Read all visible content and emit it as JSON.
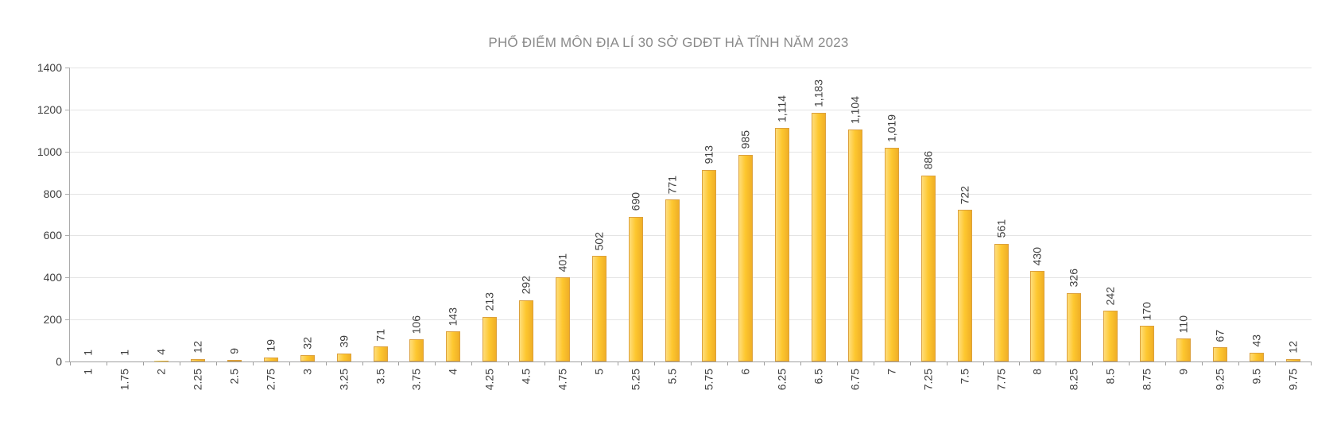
{
  "title": "PHỔ ĐIỂM MÔN ĐỊA LÍ 30 SỞ GDĐT HÀ TĨNH NĂM 2023",
  "colors": {
    "bar_fill": "#FDC72F",
    "bar_fill_light": "#FFDD7A",
    "bar_fill_dark": "#F0AF26",
    "bar_border": "#DCA13D",
    "title_text": "#8A8A8A",
    "axis_text": "#3F3F3F",
    "gridline": "#E4E4E4",
    "axis_line": "#9E9E9E"
  },
  "chart_data": {
    "type": "bar",
    "title": "PHỔ ĐIỂM MÔN ĐỊA LÍ 30 SỞ GDĐT HÀ TĨNH NĂM 2023",
    "categories": [
      "1",
      "1.75",
      "2",
      "2.25",
      "2.5",
      "2.75",
      "3",
      "3.25",
      "3.5",
      "3.75",
      "4",
      "4.25",
      "4.5",
      "4.75",
      "5",
      "5.25",
      "5.5",
      "5.75",
      "6",
      "6.25",
      "6.5",
      "6.75",
      "7",
      "7.25",
      "7.5",
      "7.75",
      "8",
      "8.25",
      "8.5",
      "8.75",
      "9",
      "9.25",
      "9.5",
      "9.75"
    ],
    "values": [
      1,
      1,
      4,
      12,
      9,
      19,
      32,
      39,
      71,
      106,
      143,
      213,
      292,
      401,
      502,
      690,
      771,
      913,
      985,
      1114,
      1183,
      1104,
      1019,
      886,
      722,
      561,
      430,
      326,
      242,
      170,
      110,
      67,
      43,
      12
    ],
    "value_labels": [
      "1",
      "1",
      "4",
      "12",
      "9",
      "19",
      "32",
      "39",
      "71",
      "106",
      "143",
      "213",
      "292",
      "401",
      "502",
      "690",
      "771",
      "913",
      "985",
      "1,114",
      "1,183",
      "1,104",
      "1,019",
      "886",
      "722",
      "561",
      "430",
      "326",
      "242",
      "170",
      "110",
      "67",
      "43",
      "12"
    ],
    "xlabel": "",
    "ylabel": "",
    "ylim": [
      0,
      1400
    ],
    "yticks": [
      0,
      200,
      400,
      600,
      800,
      1000,
      1200,
      1400
    ],
    "grid": true,
    "legend_position": "none",
    "label_rotation": 90
  }
}
